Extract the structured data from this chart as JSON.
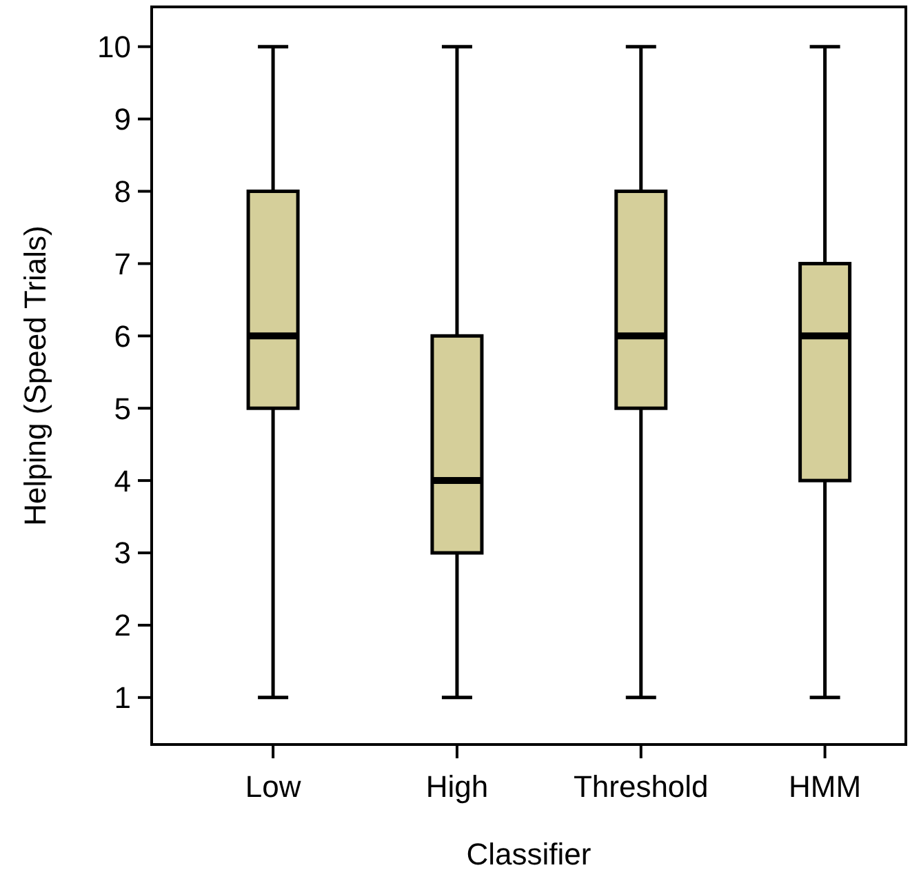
{
  "chart_data": {
    "type": "box",
    "xlabel": "Classifier",
    "ylabel": "Helping (Speed Trials)",
    "categories": [
      "Low",
      "High",
      "Threshold",
      "HMM"
    ],
    "boxes": [
      {
        "low": 1,
        "q1": 5,
        "median": 6,
        "q3": 8,
        "high": 10
      },
      {
        "low": 1,
        "q1": 3,
        "median": 4,
        "q3": 6,
        "high": 10
      },
      {
        "low": 1,
        "q1": 5,
        "median": 6,
        "q3": 8,
        "high": 10
      },
      {
        "low": 1,
        "q1": 4,
        "median": 6,
        "q3": 7,
        "high": 10
      }
    ],
    "color": "#d5cf9a",
    "ylim": [
      0.35,
      10.55
    ],
    "yticks": [
      1,
      2,
      3,
      4,
      5,
      6,
      7,
      8,
      9,
      10
    ],
    "grid": false
  }
}
